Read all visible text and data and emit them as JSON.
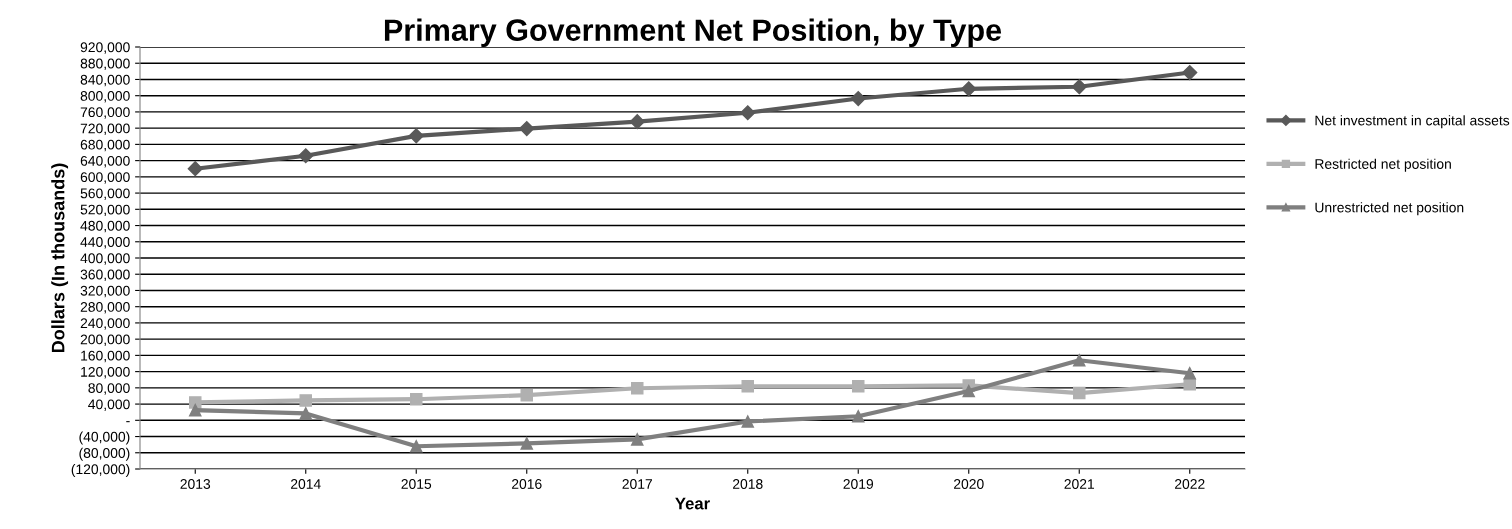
{
  "chart_data": {
    "type": "line",
    "title": "Primary Government Net Position, by Type",
    "xlabel": "Year",
    "ylabel": "Dollars (In thousands)",
    "categories": [
      "2013",
      "2014",
      "2015",
      "2016",
      "2017",
      "2018",
      "2019",
      "2020",
      "2021",
      "2022"
    ],
    "series": [
      {
        "name": "Net investment in capital assets",
        "color": "#595959",
        "marker": "diamond",
        "values": [
          620000,
          652000,
          701000,
          719000,
          736000,
          758000,
          793000,
          817000,
          822000,
          857000
        ]
      },
      {
        "name": "Restricted net position",
        "color": "#b0b0b0",
        "marker": "square",
        "values": [
          44000,
          49000,
          52000,
          62000,
          79000,
          84000,
          84000,
          86000,
          67000,
          89000
        ]
      },
      {
        "name": "Unrestricted net position",
        "color": "#7f7f7f",
        "marker": "triangle",
        "values": [
          25000,
          17000,
          -64000,
          -57000,
          -47000,
          -3000,
          10000,
          72000,
          148000,
          116000
        ]
      }
    ],
    "ylim": [
      -120000,
      920000
    ],
    "yticks": [
      {
        "value": -120000,
        "label": "(120,000)"
      },
      {
        "value": -80000,
        "label": "(80,000)"
      },
      {
        "value": -40000,
        "label": "(40,000)"
      },
      {
        "value": 0,
        "label": "-"
      },
      {
        "value": 40000,
        "label": "40,000"
      },
      {
        "value": 80000,
        "label": "80,000"
      },
      {
        "value": 120000,
        "label": "120,000"
      },
      {
        "value": 160000,
        "label": "160,000"
      },
      {
        "value": 200000,
        "label": "200,000"
      },
      {
        "value": 240000,
        "label": "240,000"
      },
      {
        "value": 280000,
        "label": "280,000"
      },
      {
        "value": 320000,
        "label": "320,000"
      },
      {
        "value": 360000,
        "label": "360,000"
      },
      {
        "value": 400000,
        "label": "400,000"
      },
      {
        "value": 440000,
        "label": "440,000"
      },
      {
        "value": 480000,
        "label": "480,000"
      },
      {
        "value": 520000,
        "label": "520,000"
      },
      {
        "value": 560000,
        "label": "560,000"
      },
      {
        "value": 600000,
        "label": "600,000"
      },
      {
        "value": 640000,
        "label": "640,000"
      },
      {
        "value": 680000,
        "label": "680,000"
      },
      {
        "value": 720000,
        "label": "720,000"
      },
      {
        "value": 760000,
        "label": "760,000"
      },
      {
        "value": 800000,
        "label": "800,000"
      },
      {
        "value": 840000,
        "label": "840,000"
      },
      {
        "value": 880000,
        "label": "880,000"
      },
      {
        "value": 920000,
        "label": "920,000"
      }
    ],
    "grid": "y",
    "legend": "right",
    "line_style": "solid"
  }
}
